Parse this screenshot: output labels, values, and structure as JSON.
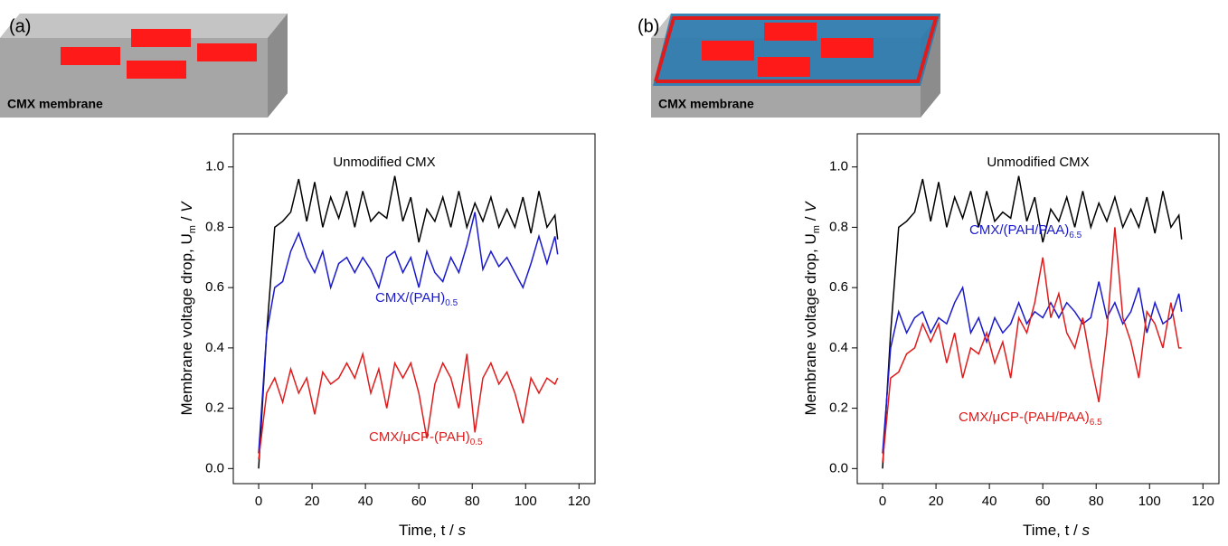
{
  "chart_data": [
    {
      "type": "line",
      "panel_label": "(a)",
      "schematic_label": "CMX membrane",
      "xlabel": {
        "main": "Time, t",
        "sep": " / ",
        "unit": "s"
      },
      "ylabel": {
        "main": "Membrane voltage drop, U",
        "sub": "m",
        "sep": " / ",
        "unit": "V"
      },
      "xlim": [
        -9.5,
        126
      ],
      "ylim": [
        -0.05,
        1.11
      ],
      "xticks": [
        0,
        20,
        40,
        60,
        80,
        100,
        120
      ],
      "yticks": [
        {
          "value": 0,
          "label": "0.0"
        },
        0.2,
        0.4,
        0.6,
        0.8,
        {
          "value": 1,
          "label": "1.0"
        }
      ],
      "x": [
        0,
        3,
        6,
        9,
        12,
        15,
        18,
        21,
        24,
        27,
        30,
        33,
        36,
        39,
        42,
        45,
        48,
        51,
        54,
        57,
        60,
        63,
        66,
        69,
        72,
        75,
        78,
        81,
        84,
        87,
        90,
        93,
        96,
        99,
        102,
        105,
        108,
        111,
        112
      ],
      "series": [
        {
          "label": {
            "text": "Unmodified CMX"
          },
          "color": "#000000",
          "values": [
            0.0,
            0.45,
            0.8,
            0.82,
            0.85,
            0.96,
            0.82,
            0.95,
            0.8,
            0.9,
            0.83,
            0.92,
            0.8,
            0.92,
            0.82,
            0.85,
            0.83,
            0.97,
            0.82,
            0.9,
            0.75,
            0.86,
            0.82,
            0.9,
            0.8,
            0.92,
            0.8,
            0.88,
            0.82,
            0.9,
            0.8,
            0.86,
            0.8,
            0.9,
            0.78,
            0.92,
            0.8,
            0.84,
            0.76
          ]
        },
        {
          "label": {
            "text": "CMX/(PAH)",
            "sub": "0.5"
          },
          "color": "#1a1acc",
          "values": [
            0.05,
            0.45,
            0.6,
            0.62,
            0.72,
            0.78,
            0.7,
            0.65,
            0.72,
            0.6,
            0.68,
            0.7,
            0.65,
            0.7,
            0.66,
            0.6,
            0.7,
            0.72,
            0.65,
            0.7,
            0.6,
            0.72,
            0.65,
            0.62,
            0.7,
            0.65,
            0.74,
            0.85,
            0.66,
            0.72,
            0.67,
            0.7,
            0.65,
            0.6,
            0.68,
            0.77,
            0.68,
            0.77,
            0.71
          ]
        },
        {
          "label": {
            "text": "CMX/μCP-(PAH)",
            "sub": "0.5"
          },
          "color": "#e01b1b",
          "values": [
            0.03,
            0.25,
            0.3,
            0.22,
            0.33,
            0.25,
            0.3,
            0.18,
            0.32,
            0.28,
            0.3,
            0.35,
            0.3,
            0.38,
            0.25,
            0.33,
            0.2,
            0.35,
            0.3,
            0.35,
            0.25,
            0.1,
            0.28,
            0.35,
            0.3,
            0.2,
            0.38,
            0.12,
            0.3,
            0.35,
            0.28,
            0.32,
            0.25,
            0.15,
            0.3,
            0.25,
            0.3,
            0.28,
            0.3
          ]
        }
      ]
    },
    {
      "type": "line",
      "panel_label": "(b)",
      "schematic_label": "CMX membrane",
      "xlabel": {
        "main": "Time, t",
        "sep": " / ",
        "unit": "s"
      },
      "ylabel": {
        "main": "Membrane voltage drop, U",
        "sub": "m",
        "sep": " / ",
        "unit": "V"
      },
      "xlim": [
        -9.5,
        126
      ],
      "ylim": [
        -0.05,
        1.11
      ],
      "xticks": [
        0,
        20,
        40,
        60,
        80,
        100,
        120
      ],
      "yticks": [
        {
          "value": 0,
          "label": "0.0"
        },
        0.2,
        0.4,
        0.6,
        0.8,
        {
          "value": 1,
          "label": "1.0"
        }
      ],
      "x": [
        0,
        3,
        6,
        9,
        12,
        15,
        18,
        21,
        24,
        27,
        30,
        33,
        36,
        39,
        42,
        45,
        48,
        51,
        54,
        57,
        60,
        63,
        66,
        69,
        72,
        75,
        78,
        81,
        84,
        87,
        90,
        93,
        96,
        99,
        102,
        105,
        108,
        111,
        112
      ],
      "series": [
        {
          "label": {
            "text": "Unmodified CMX"
          },
          "color": "#000000",
          "values": [
            0.0,
            0.45,
            0.8,
            0.82,
            0.85,
            0.96,
            0.82,
            0.95,
            0.8,
            0.9,
            0.83,
            0.92,
            0.8,
            0.92,
            0.82,
            0.85,
            0.83,
            0.97,
            0.82,
            0.9,
            0.75,
            0.86,
            0.82,
            0.9,
            0.8,
            0.92,
            0.8,
            0.88,
            0.82,
            0.9,
            0.8,
            0.86,
            0.8,
            0.9,
            0.78,
            0.92,
            0.8,
            0.84,
            0.76
          ]
        },
        {
          "label": {
            "text": "CMX/(PAH/PAA)",
            "sub": "6.5"
          },
          "color": "#1a1acc",
          "values": [
            0.05,
            0.4,
            0.52,
            0.45,
            0.5,
            0.52,
            0.45,
            0.5,
            0.48,
            0.55,
            0.6,
            0.45,
            0.5,
            0.42,
            0.5,
            0.45,
            0.48,
            0.55,
            0.48,
            0.52,
            0.5,
            0.55,
            0.5,
            0.55,
            0.52,
            0.48,
            0.5,
            0.62,
            0.5,
            0.55,
            0.48,
            0.52,
            0.6,
            0.45,
            0.55,
            0.48,
            0.5,
            0.58,
            0.52
          ]
        },
        {
          "label": {
            "text": "CMX/μCP-(PAH/PAA)",
            "sub": "6.5"
          },
          "color": "#e01b1b",
          "values": [
            0.02,
            0.3,
            0.32,
            0.38,
            0.4,
            0.48,
            0.42,
            0.48,
            0.35,
            0.45,
            0.3,
            0.4,
            0.38,
            0.45,
            0.35,
            0.42,
            0.3,
            0.5,
            0.45,
            0.55,
            0.7,
            0.5,
            0.58,
            0.45,
            0.4,
            0.5,
            0.35,
            0.22,
            0.45,
            0.8,
            0.5,
            0.42,
            0.3,
            0.52,
            0.48,
            0.4,
            0.55,
            0.4,
            0.4
          ]
        }
      ]
    }
  ]
}
